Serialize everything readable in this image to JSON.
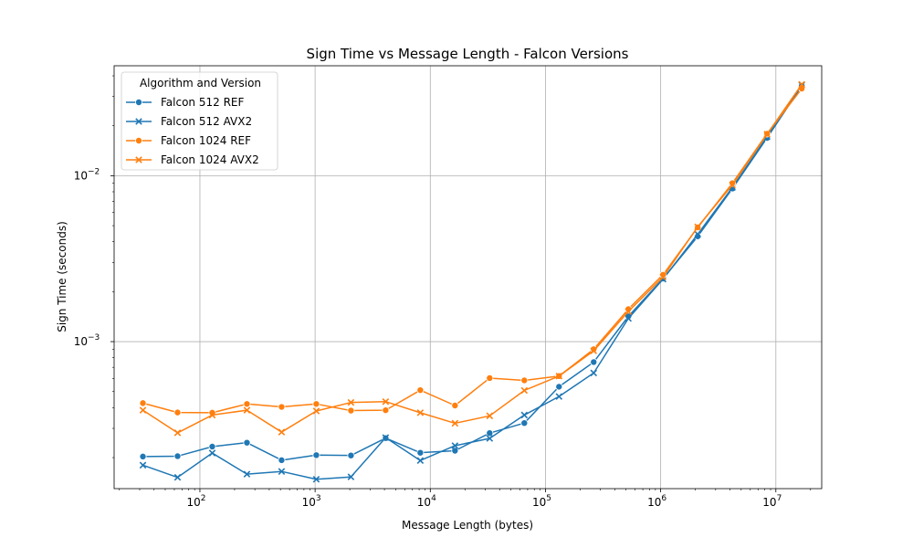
{
  "chart_data": {
    "type": "line",
    "title": "Sign Time vs Message Length - Falcon Versions",
    "xlabel": "Message Length (bytes)",
    "ylabel": "Sign Time (seconds)",
    "xscale": "log",
    "yscale": "log",
    "xlim": [
      18,
      25000000
    ],
    "ylim": [
      0.00013,
      0.046
    ],
    "grid": true,
    "legend": {
      "title": "Algorithm and Version",
      "placement": "top-left"
    },
    "x_ticks": [
      {
        "value": 100,
        "base": "10",
        "exp": "2"
      },
      {
        "value": 1000,
        "base": "10",
        "exp": "3"
      },
      {
        "value": 10000,
        "base": "10",
        "exp": "4"
      },
      {
        "value": 100000,
        "base": "10",
        "exp": "5"
      },
      {
        "value": 1000000,
        "base": "10",
        "exp": "6"
      },
      {
        "value": 10000000,
        "base": "10",
        "exp": "7"
      }
    ],
    "y_ticks": [
      {
        "value": 0.001,
        "base": "10",
        "exp": "−3"
      },
      {
        "value": 0.01,
        "base": "10",
        "exp": "−2"
      }
    ],
    "x": [
      32,
      64,
      128,
      256,
      512,
      1024,
      2048,
      4096,
      8192,
      16384,
      32768,
      65536,
      131072,
      262144,
      524288,
      1048576,
      2097152,
      4194304,
      8388608,
      16777216
    ],
    "series": [
      {
        "name": "Falcon 512 REF",
        "color": "#1f77b4",
        "marker": "circle",
        "values": [
          0.000203,
          0.000204,
          0.000233,
          0.000246,
          0.000193,
          0.000207,
          0.000206,
          0.000262,
          0.000214,
          0.00022,
          0.000281,
          0.000323,
          0.000535,
          0.000753,
          0.00142,
          0.0024,
          0.00431,
          0.00837,
          0.0169,
          0.0348
        ]
      },
      {
        "name": "Falcon 512 AVX2",
        "color": "#1f77b4",
        "marker": "x",
        "values": [
          0.00018,
          0.000152,
          0.000213,
          0.000159,
          0.000165,
          0.000148,
          0.000153,
          0.000264,
          0.000192,
          0.000236,
          0.000261,
          0.000361,
          0.000467,
          0.000647,
          0.00138,
          0.00238,
          0.00444,
          0.0085,
          0.0172,
          0.0352
        ]
      },
      {
        "name": "Falcon 1024 REF",
        "color": "#ff7f0e",
        "marker": "circle",
        "values": [
          0.000426,
          0.000374,
          0.000373,
          0.000421,
          0.000404,
          0.000421,
          0.000384,
          0.000386,
          0.00051,
          0.000412,
          0.000603,
          0.000584,
          0.00062,
          0.0009,
          0.00157,
          0.00253,
          0.00488,
          0.00902,
          0.0179,
          0.0335
        ]
      },
      {
        "name": "Falcon 1024 AVX2",
        "color": "#ff7f0e",
        "marker": "x",
        "values": [
          0.000386,
          0.000282,
          0.000361,
          0.000386,
          0.000285,
          0.000382,
          0.00043,
          0.000435,
          0.000373,
          0.000322,
          0.000357,
          0.000508,
          0.00062,
          0.00088,
          0.00152,
          0.00245,
          0.00492,
          0.0088,
          0.0178,
          0.0355
        ]
      }
    ]
  }
}
